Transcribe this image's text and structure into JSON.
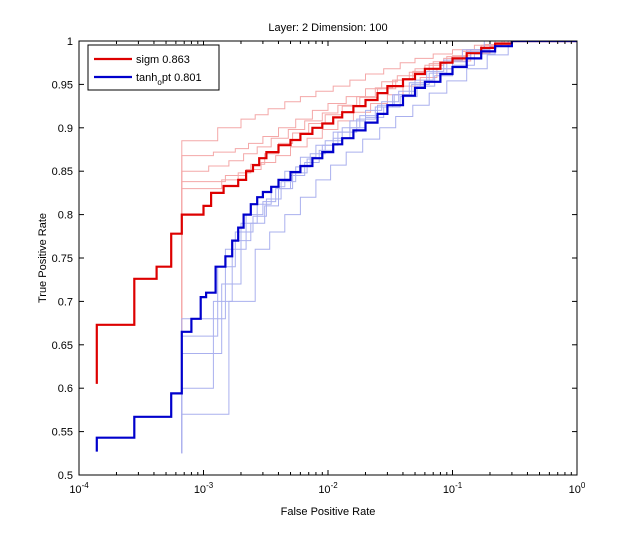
{
  "chart_data": {
    "type": "line",
    "title": "Layer: 2  Dimension: 100",
    "xlabel": "False Positive Rate",
    "ylabel": "True Positive Rate",
    "xscale": "log",
    "xlim": [
      0.0001,
      1
    ],
    "ylim": [
      0.5,
      1
    ],
    "xticks": [
      {
        "value": 0.0001,
        "base": "10",
        "exp": "-4"
      },
      {
        "value": 0.001,
        "base": "10",
        "exp": "-3"
      },
      {
        "value": 0.01,
        "base": "10",
        "exp": "-2"
      },
      {
        "value": 0.1,
        "base": "10",
        "exp": "-1"
      },
      {
        "value": 1,
        "base": "10",
        "exp": "0"
      }
    ],
    "yticks": [
      {
        "value": 0.5,
        "label": "0.5"
      },
      {
        "value": 0.55,
        "label": "0.55"
      },
      {
        "value": 0.6,
        "label": "0.6"
      },
      {
        "value": 0.65,
        "label": "0.65"
      },
      {
        "value": 0.7,
        "label": "0.7"
      },
      {
        "value": 0.75,
        "label": "0.75"
      },
      {
        "value": 0.8,
        "label": "0.8"
      },
      {
        "value": 0.85,
        "label": "0.85"
      },
      {
        "value": 0.9,
        "label": "0.9"
      },
      {
        "value": 0.95,
        "label": "0.95"
      },
      {
        "value": 1,
        "label": "1"
      }
    ],
    "grid": false,
    "legend_position": "top-left",
    "legend": [
      {
        "label_pre": "sigm",
        "label_sub": "",
        "label_post": "  0.863",
        "color": "#dd0000"
      },
      {
        "label_pre": "tanh",
        "label_sub": "o",
        "label_post": "pt  0.801",
        "color": "#0000cc"
      }
    ],
    "series": [
      {
        "name": "sigm",
        "color": "#dd0000",
        "width": 2.2,
        "x": [
          0.000139,
          0.000139,
          0.000278,
          0.000278,
          0.00042,
          0.00042,
          0.00055,
          0.00055,
          0.00067,
          0.00067,
          0.001,
          0.001,
          0.00115,
          0.00115,
          0.00145,
          0.00145,
          0.0019,
          0.0019,
          0.0022,
          0.0025,
          0.0028,
          0.0032,
          0.004,
          0.005,
          0.006,
          0.0075,
          0.009,
          0.011,
          0.013,
          0.016,
          0.02,
          0.025,
          0.03,
          0.04,
          0.05,
          0.06,
          0.08,
          0.1,
          0.13,
          0.17,
          0.22,
          0.3
        ],
        "y": [
          0.605,
          0.673,
          0.678,
          0.726,
          0.73,
          0.74,
          0.742,
          0.778,
          0.78,
          0.8,
          0.803,
          0.81,
          0.812,
          0.825,
          0.828,
          0.833,
          0.838,
          0.84,
          0.85,
          0.857,
          0.865,
          0.872,
          0.88,
          0.886,
          0.893,
          0.9,
          0.905,
          0.912,
          0.918,
          0.925,
          0.932,
          0.94,
          0.948,
          0.956,
          0.962,
          0.968,
          0.975,
          0.98,
          0.986,
          0.992,
          0.997,
          1
        ]
      },
      {
        "name": "tanh_opt",
        "color": "#0000cc",
        "width": 2.2,
        "x": [
          0.000139,
          0.000139,
          0.000278,
          0.000278,
          0.00055,
          0.00055,
          0.00067,
          0.00067,
          0.0008,
          0.00095,
          0.00095,
          0.00105,
          0.00125,
          0.00125,
          0.0015,
          0.0017,
          0.0019,
          0.0021,
          0.0024,
          0.0027,
          0.003,
          0.0035,
          0.004,
          0.005,
          0.006,
          0.0075,
          0.009,
          0.011,
          0.013,
          0.016,
          0.02,
          0.025,
          0.03,
          0.04,
          0.05,
          0.06,
          0.08,
          0.1,
          0.13,
          0.17,
          0.22,
          0.3
        ],
        "y": [
          0.527,
          0.543,
          0.547,
          0.567,
          0.573,
          0.594,
          0.598,
          0.665,
          0.68,
          0.695,
          0.705,
          0.71,
          0.72,
          0.74,
          0.752,
          0.77,
          0.785,
          0.8,
          0.812,
          0.82,
          0.826,
          0.832,
          0.84,
          0.849,
          0.856,
          0.865,
          0.872,
          0.881,
          0.888,
          0.897,
          0.906,
          0.916,
          0.926,
          0.937,
          0.946,
          0.953,
          0.962,
          0.97,
          0.98,
          0.988,
          0.994,
          1
        ]
      },
      {
        "name": "",
        "color": "#f4a8a8",
        "width": 1,
        "x": [
          0.00067,
          0.00067,
          0.0013,
          0.0013,
          0.002,
          0.0026,
          0.0033,
          0.0045,
          0.006,
          0.008,
          0.011,
          0.015,
          0.02,
          0.028,
          0.038,
          0.05,
          0.07,
          0.1,
          0.15,
          0.22,
          0.3
        ],
        "y": [
          0.6,
          0.885,
          0.885,
          0.9,
          0.91,
          0.915,
          0.922,
          0.93,
          0.936,
          0.942,
          0.948,
          0.955,
          0.962,
          0.968,
          0.975,
          0.98,
          0.985,
          0.99,
          0.995,
          0.998,
          1
        ]
      },
      {
        "name": "",
        "color": "#f4a8a8",
        "width": 1,
        "x": [
          0.00067,
          0.00067,
          0.0012,
          0.0012,
          0.0018,
          0.0023,
          0.003,
          0.004,
          0.0055,
          0.0075,
          0.01,
          0.014,
          0.02,
          0.027,
          0.036,
          0.05,
          0.07,
          0.1,
          0.14,
          0.2,
          0.3
        ],
        "y": [
          0.6,
          0.868,
          0.868,
          0.872,
          0.876,
          0.882,
          0.89,
          0.9,
          0.91,
          0.92,
          0.928,
          0.936,
          0.945,
          0.953,
          0.96,
          0.968,
          0.976,
          0.983,
          0.99,
          0.996,
          1
        ]
      },
      {
        "name": "",
        "color": "#f4a8a8",
        "width": 1,
        "x": [
          0.00067,
          0.00067,
          0.0011,
          0.0011,
          0.0016,
          0.0021,
          0.0027,
          0.0035,
          0.0048,
          0.0065,
          0.009,
          0.012,
          0.017,
          0.024,
          0.033,
          0.045,
          0.06,
          0.085,
          0.12,
          0.17,
          0.25
        ],
        "y": [
          0.6,
          0.85,
          0.85,
          0.856,
          0.862,
          0.87,
          0.878,
          0.888,
          0.898,
          0.908,
          0.917,
          0.926,
          0.936,
          0.946,
          0.955,
          0.964,
          0.972,
          0.98,
          0.988,
          0.995,
          1
        ]
      },
      {
        "name": "",
        "color": "#f4a8a8",
        "width": 1,
        "x": [
          0.00067,
          0.00067,
          0.0015,
          0.0015,
          0.0022,
          0.0029,
          0.0038,
          0.005,
          0.0068,
          0.009,
          0.012,
          0.016,
          0.022,
          0.03,
          0.04,
          0.055,
          0.075,
          0.1,
          0.14,
          0.2,
          0.28
        ],
        "y": [
          0.6,
          0.838,
          0.838,
          0.845,
          0.852,
          0.86,
          0.868,
          0.878,
          0.888,
          0.898,
          0.908,
          0.918,
          0.928,
          0.938,
          0.948,
          0.958,
          0.968,
          0.977,
          0.986,
          0.994,
          1
        ]
      },
      {
        "name": "",
        "color": "#f4a8a8",
        "width": 1,
        "x": [
          0.00067,
          0.00067,
          0.0014,
          0.0014,
          0.0019,
          0.0024,
          0.0031,
          0.004,
          0.0052,
          0.007,
          0.0095,
          0.013,
          0.018,
          0.025,
          0.035,
          0.048,
          0.065,
          0.09,
          0.13,
          0.18,
          0.26
        ],
        "y": [
          0.6,
          0.83,
          0.83,
          0.84,
          0.848,
          0.858,
          0.87,
          0.882,
          0.894,
          0.905,
          0.915,
          0.925,
          0.935,
          0.945,
          0.955,
          0.965,
          0.974,
          0.982,
          0.99,
          0.996,
          1
        ]
      },
      {
        "name": "",
        "color": "#aab0ee",
        "width": 1,
        "x": [
          0.00067,
          0.00067,
          0.0014,
          0.0014,
          0.002,
          0.002,
          0.0027,
          0.0035,
          0.0045,
          0.006,
          0.008,
          0.011,
          0.015,
          0.02,
          0.027,
          0.037,
          0.05,
          0.07,
          0.1,
          0.14,
          0.2
        ],
        "y": [
          0.525,
          0.64,
          0.64,
          0.72,
          0.73,
          0.79,
          0.812,
          0.832,
          0.85,
          0.866,
          0.88,
          0.895,
          0.908,
          0.92,
          0.93,
          0.942,
          0.955,
          0.968,
          0.98,
          0.99,
          1
        ]
      },
      {
        "name": "",
        "color": "#aab0ee",
        "width": 1,
        "x": [
          0.00067,
          0.00067,
          0.0013,
          0.0013,
          0.0018,
          0.0018,
          0.0025,
          0.0032,
          0.0042,
          0.0055,
          0.0072,
          0.0095,
          0.013,
          0.018,
          0.025,
          0.034,
          0.047,
          0.065,
          0.09,
          0.13,
          0.2
        ],
        "y": [
          0.525,
          0.66,
          0.66,
          0.74,
          0.748,
          0.78,
          0.798,
          0.818,
          0.838,
          0.855,
          0.87,
          0.885,
          0.9,
          0.914,
          0.926,
          0.938,
          0.95,
          0.963,
          0.976,
          0.988,
          1
        ]
      },
      {
        "name": "",
        "color": "#aab0ee",
        "width": 1,
        "x": [
          0.00067,
          0.00067,
          0.0015,
          0.0015,
          0.0022,
          0.0022,
          0.003,
          0.0038,
          0.005,
          0.0065,
          0.0085,
          0.011,
          0.015,
          0.02,
          0.028,
          0.038,
          0.052,
          0.072,
          0.1,
          0.15,
          0.22
        ],
        "y": [
          0.525,
          0.68,
          0.68,
          0.76,
          0.768,
          0.8,
          0.815,
          0.83,
          0.845,
          0.86,
          0.874,
          0.888,
          0.9,
          0.912,
          0.924,
          0.936,
          0.948,
          0.96,
          0.972,
          0.985,
          1
        ]
      },
      {
        "name": "",
        "color": "#aab0ee",
        "width": 1,
        "x": [
          0.00067,
          0.00067,
          0.0012,
          0.0012,
          0.0017,
          0.0017,
          0.0024,
          0.0031,
          0.004,
          0.0052,
          0.0068,
          0.009,
          0.012,
          0.017,
          0.024,
          0.033,
          0.045,
          0.062,
          0.085,
          0.12,
          0.18
        ],
        "y": [
          0.525,
          0.6,
          0.6,
          0.7,
          0.712,
          0.77,
          0.79,
          0.81,
          0.83,
          0.848,
          0.864,
          0.88,
          0.895,
          0.91,
          0.924,
          0.938,
          0.952,
          0.965,
          0.978,
          0.99,
          1
        ]
      },
      {
        "name": "",
        "color": "#aab0ee",
        "width": 1,
        "x": [
          0.00067,
          0.00067,
          0.0016,
          0.0016,
          0.0026,
          0.0026,
          0.0034,
          0.0045,
          0.006,
          0.008,
          0.0105,
          0.014,
          0.019,
          0.026,
          0.035,
          0.048,
          0.065,
          0.09,
          0.13,
          0.19,
          0.28
        ],
        "y": [
          0.525,
          0.57,
          0.57,
          0.7,
          0.71,
          0.76,
          0.78,
          0.8,
          0.82,
          0.84,
          0.857,
          0.872,
          0.887,
          0.9,
          0.913,
          0.926,
          0.94,
          0.954,
          0.968,
          0.984,
          1
        ]
      }
    ]
  }
}
